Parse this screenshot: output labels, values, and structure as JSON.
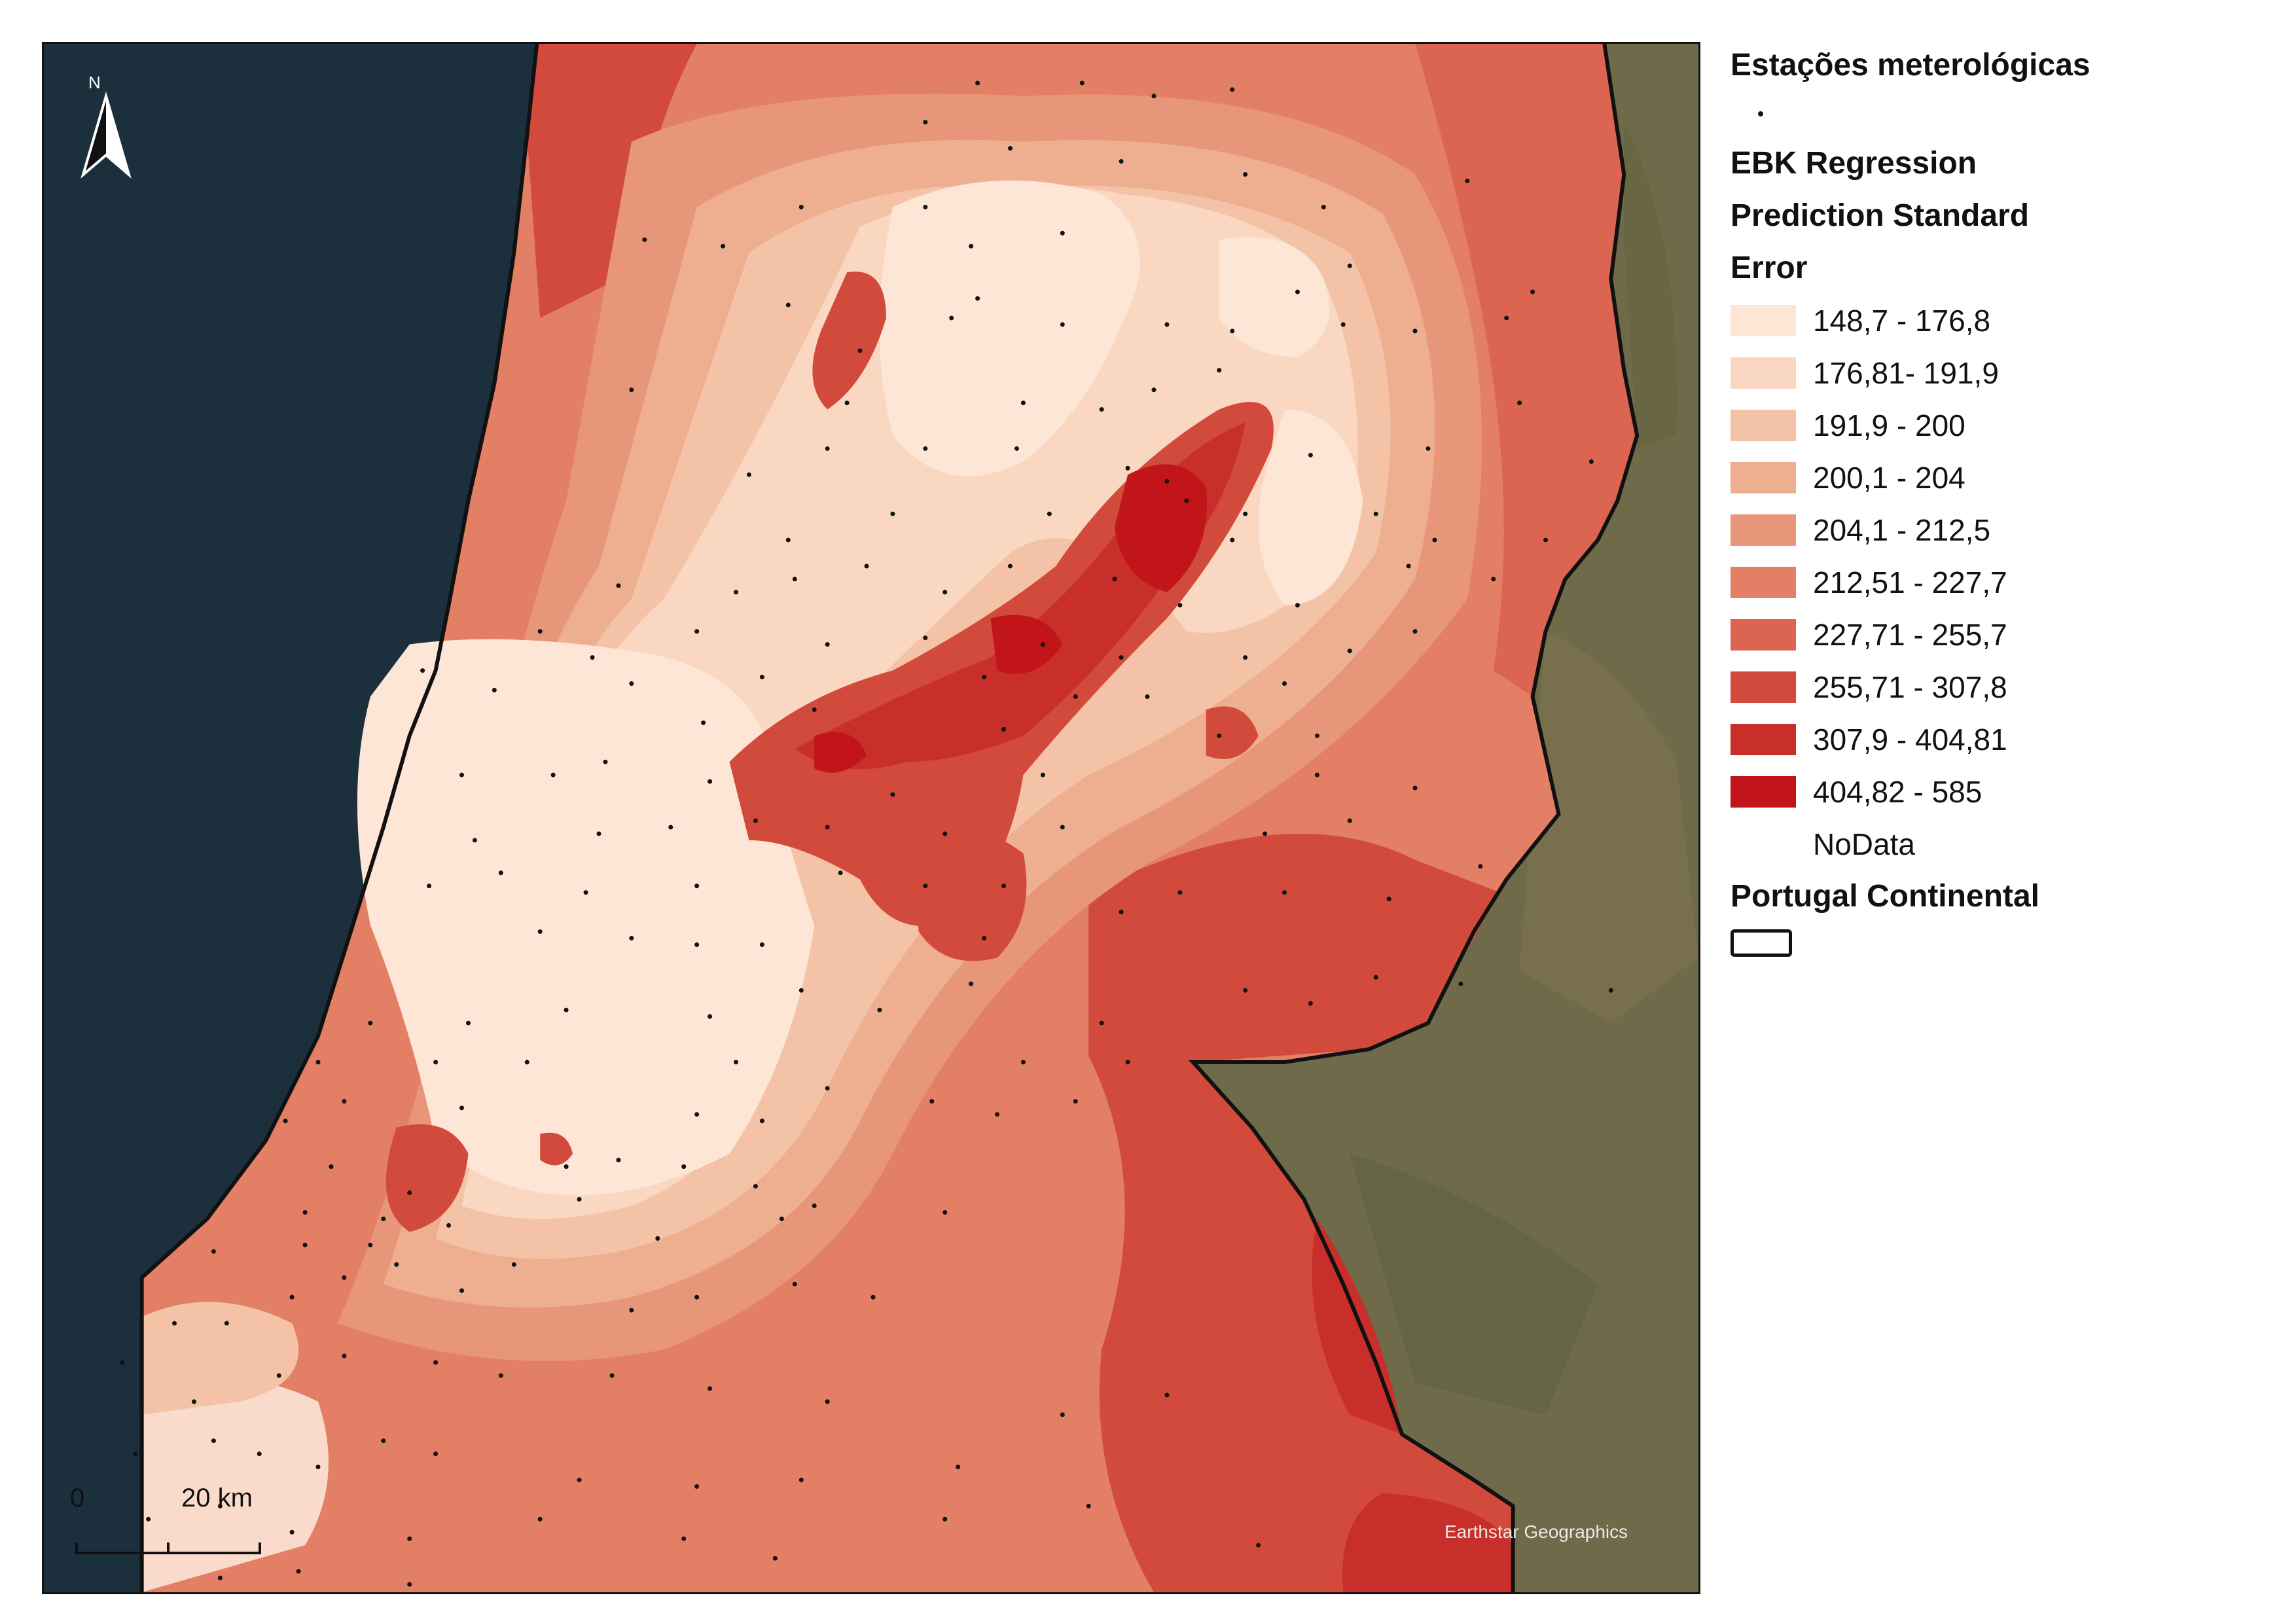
{
  "map": {
    "north_label": "N",
    "scale_zero": "0",
    "scale_label": "20 km",
    "attribution": "Earthstar Geographics",
    "colors": {
      "sea": "#1b2f3d",
      "land": "#6f6a4a",
      "border": "#111111",
      "station": "#111111"
    }
  },
  "legend": {
    "stations_title": "Estações meterológicas",
    "ebk_title_line1": "EBK Regression",
    "ebk_title_line2": "Prediction Standard",
    "ebk_title_line3": "Error",
    "classes": [
      {
        "label": "148,7 - 176,8",
        "color": "#fde6d6"
      },
      {
        "label": "176,81- 191,9",
        "color": "#f9d7c0"
      },
      {
        "label": "191,9 - 200",
        "color": "#f4c3a7"
      },
      {
        "label": "200,1 - 204",
        "color": "#eeae90"
      },
      {
        "label": "204,1 - 212,5",
        "color": "#e8967a"
      },
      {
        "label": "212,51 - 227,7",
        "color": "#e27f65"
      },
      {
        "label": "227,71 - 255,7",
        "color": "#db6551"
      },
      {
        "label": "255,71 - 307,8",
        "color": "#d24a3c"
      },
      {
        "label": "307,9 - 404,81",
        "color": "#c92f2a"
      },
      {
        "label": "404,82 - 585",
        "color": "#c1151a"
      }
    ],
    "nodata_label": "NoData",
    "portugal_title": "Portugal Continental"
  }
}
